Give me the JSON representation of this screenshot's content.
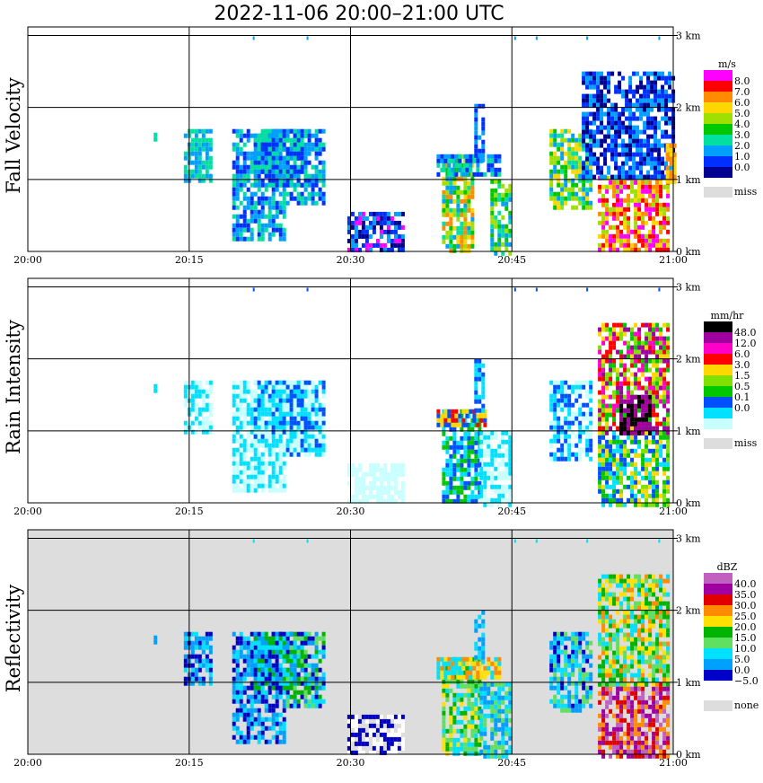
{
  "title": "2022-11-06   20:00–21:00 UTC",
  "chart_data": [
    {
      "type": "heatmap",
      "ylabel": "Fall Velocity",
      "x_ticks": [
        "20:00",
        "20:15",
        "20:30",
        "20:45",
        "21:00"
      ],
      "y_ticks": [
        "0 km",
        "1 km",
        "2 km",
        "3 km"
      ],
      "xlim_minutes": [
        0,
        60
      ],
      "ylim_km": [
        0,
        3.1
      ],
      "grid": true,
      "legend": {
        "unit": "m/s",
        "levels": [
          "8.0",
          "7.0",
          "6.0",
          "5.0",
          "4.0",
          "3.0",
          "2.0",
          "1.0",
          "0.0"
        ],
        "colors": [
          "#ff00ff",
          "#ff0000",
          "#ff8c00",
          "#ffd700",
          "#a0e000",
          "#00c800",
          "#00e0a0",
          "#00a0ff",
          "#0030ff",
          "#000090"
        ],
        "missing_label": "miss",
        "missing_color": "#dddddd"
      },
      "background": "#ffffff",
      "echoes": [
        {
          "t0": 11.7,
          "t1": 11.8,
          "z0": 1.55,
          "z1": 1.65,
          "cls": [
            6
          ]
        },
        {
          "t0": 14.5,
          "t1": 17,
          "z0": 1.0,
          "z1": 1.7,
          "cls": [
            6,
            7
          ]
        },
        {
          "t0": 19,
          "t1": 24,
          "z0": 0.2,
          "z1": 1.7,
          "cls": [
            6,
            7,
            8
          ]
        },
        {
          "t0": 21,
          "t1": 26,
          "z0": 0.9,
          "z1": 1.7,
          "cls": [
            6,
            7,
            8
          ]
        },
        {
          "t0": 24,
          "t1": 27.5,
          "z0": 0.7,
          "z1": 1.7,
          "cls": [
            6,
            7,
            8
          ]
        },
        {
          "t0": 29.7,
          "t1": 35,
          "z0": 0,
          "z1": 0.55,
          "cls": [
            7,
            8,
            9,
            0
          ]
        },
        {
          "t0": 38.5,
          "t1": 41.5,
          "z0": 0,
          "z1": 1.35,
          "cls": [
            2,
            3,
            4,
            5,
            6,
            7
          ]
        },
        {
          "t0": 38,
          "t1": 44,
          "z0": 1.1,
          "z1": 1.35,
          "cls": [
            6,
            7,
            8
          ]
        },
        {
          "t0": 41.5,
          "t1": 42.2,
          "z0": 1.3,
          "z1": 2.05,
          "cls": [
            7,
            8
          ]
        },
        {
          "t0": 43,
          "t1": 45,
          "z0": 0,
          "z1": 1.0,
          "cls": [
            4,
            5,
            6,
            7
          ]
        },
        {
          "t0": 48.5,
          "t1": 52.5,
          "z0": 0.6,
          "z1": 1.7,
          "cls": [
            3,
            4,
            5,
            6,
            7
          ]
        },
        {
          "t0": 53,
          "t1": 59.5,
          "z0": 0,
          "z1": 1.05,
          "cls": [
            0,
            1,
            2,
            3,
            4
          ]
        },
        {
          "t0": 51.5,
          "t1": 60,
          "z0": 1.05,
          "z1": 2.5,
          "cls": [
            7,
            8,
            9
          ]
        },
        {
          "t0": 59.3,
          "t1": 60,
          "z0": 1.0,
          "z1": 1.5,
          "cls": [
            2,
            3
          ]
        }
      ],
      "top_specks": [
        21,
        26,
        45.3,
        47.3,
        52,
        58.7
      ]
    },
    {
      "type": "heatmap",
      "ylabel": "Rain Intensity",
      "x_ticks": [
        "20:00",
        "20:15",
        "20:30",
        "20:45",
        "21:00"
      ],
      "y_ticks": [
        "0 km",
        "1 km",
        "2 km",
        "3 km"
      ],
      "xlim_minutes": [
        0,
        60
      ],
      "ylim_km": [
        0,
        3.1
      ],
      "grid": true,
      "legend": {
        "unit": "mm/hr",
        "levels": [
          "48.0",
          "12.0",
          "6.0",
          "3.0",
          "1.5",
          "0.5",
          "0.1",
          "0.0"
        ],
        "colors": [
          "#000000",
          "#a000a0",
          "#ff00c8",
          "#ff0000",
          "#ffd700",
          "#80e000",
          "#00c800",
          "#0050ff",
          "#00e0ff",
          "#c8ffff"
        ],
        "missing_label": "miss",
        "missing_color": "#dddddd"
      },
      "background": "#ffffff",
      "echoes": [
        {
          "t0": 11.7,
          "t1": 11.8,
          "z0": 1.55,
          "z1": 1.65,
          "cls": [
            8
          ]
        },
        {
          "t0": 14.5,
          "t1": 17,
          "z0": 1.0,
          "z1": 1.7,
          "cls": [
            8,
            9
          ]
        },
        {
          "t0": 19,
          "t1": 24,
          "z0": 0.2,
          "z1": 1.7,
          "cls": [
            8,
            9
          ]
        },
        {
          "t0": 21,
          "t1": 26,
          "z0": 0.9,
          "z1": 1.7,
          "cls": [
            8,
            9,
            7
          ]
        },
        {
          "t0": 24,
          "t1": 27.5,
          "z0": 0.7,
          "z1": 1.7,
          "cls": [
            8,
            9,
            7
          ]
        },
        {
          "t0": 29.7,
          "t1": 35,
          "z0": 0,
          "z1": 0.55,
          "cls": [
            9
          ]
        },
        {
          "t0": 38.5,
          "t1": 42,
          "z0": 0,
          "z1": 1.3,
          "cls": [
            7,
            8,
            6
          ]
        },
        {
          "t0": 38,
          "t1": 42.5,
          "z0": 1.1,
          "z1": 1.3,
          "cls": [
            3,
            4,
            7
          ]
        },
        {
          "t0": 41.5,
          "t1": 42.2,
          "z0": 1.3,
          "z1": 2.0,
          "cls": [
            7,
            8
          ]
        },
        {
          "t0": 42,
          "t1": 45,
          "z0": 0,
          "z1": 1.0,
          "cls": [
            8,
            9
          ]
        },
        {
          "t0": 48.5,
          "t1": 52.5,
          "z0": 0.6,
          "z1": 1.7,
          "cls": [
            8,
            9,
            7
          ]
        },
        {
          "t0": 53,
          "t1": 59.5,
          "z0": 0,
          "z1": 1.0,
          "cls": [
            4,
            5,
            6,
            7,
            8
          ]
        },
        {
          "t0": 53,
          "t1": 59.5,
          "z0": 1.0,
          "z1": 2.5,
          "cls": [
            1,
            2,
            3,
            4,
            5,
            6
          ]
        },
        {
          "t0": 55,
          "t1": 58,
          "z0": 1.0,
          "z1": 1.5,
          "cls": [
            0,
            1
          ]
        }
      ],
      "top_specks": [
        21,
        26,
        45.3,
        47.3,
        52,
        58.7
      ]
    },
    {
      "type": "heatmap",
      "ylabel": "Reflectivity",
      "x_ticks": [
        "20:00",
        "20:15",
        "20:30",
        "20:45",
        "21:00"
      ],
      "y_ticks": [
        "0 km",
        "1 km",
        "2 km",
        "3 km"
      ],
      "xlim_minutes": [
        0,
        60
      ],
      "ylim_km": [
        0,
        3.1
      ],
      "grid": true,
      "legend": {
        "unit": "dBZ",
        "levels": [
          "40.0",
          "35.0",
          "30.0",
          "25.0",
          "20.0",
          "15.0",
          "10.0",
          "5.0",
          "0.0",
          "−5.0"
        ],
        "colors": [
          "#c060c0",
          "#a000a0",
          "#e00000",
          "#ff8c00",
          "#ffe000",
          "#00b400",
          "#60e060",
          "#00e0ff",
          "#00a0ff",
          "#0000c8",
          "#ffffff"
        ],
        "missing_label": "none",
        "missing_color": "#dddddd"
      },
      "background": "#dddddd",
      "echoes": [
        {
          "t0": 11.7,
          "t1": 11.8,
          "z0": 1.55,
          "z1": 1.65,
          "cls": [
            8
          ]
        },
        {
          "t0": 14.5,
          "t1": 17,
          "z0": 1.0,
          "z1": 1.7,
          "cls": [
            7,
            8,
            9
          ]
        },
        {
          "t0": 19,
          "t1": 24,
          "z0": 0.2,
          "z1": 1.7,
          "cls": [
            7,
            8,
            9
          ]
        },
        {
          "t0": 21,
          "t1": 26,
          "z0": 0.9,
          "z1": 1.7,
          "cls": [
            5,
            7,
            8,
            9
          ]
        },
        {
          "t0": 24,
          "t1": 27.5,
          "z0": 0.7,
          "z1": 1.7,
          "cls": [
            5,
            6,
            7,
            8,
            9
          ]
        },
        {
          "t0": 29.7,
          "t1": 35,
          "z0": 0,
          "z1": 0.55,
          "cls": [
            9,
            10
          ]
        },
        {
          "t0": 38.5,
          "t1": 42,
          "z0": 0,
          "z1": 1.35,
          "cls": [
            4,
            5,
            6,
            7
          ]
        },
        {
          "t0": 38,
          "t1": 44,
          "z0": 1.1,
          "z1": 1.35,
          "cls": [
            3,
            4,
            7
          ]
        },
        {
          "t0": 41.5,
          "t1": 42.2,
          "z0": 1.3,
          "z1": 2.0,
          "cls": [
            7,
            8
          ]
        },
        {
          "t0": 42,
          "t1": 45,
          "z0": 0,
          "z1": 1.0,
          "cls": [
            6,
            7,
            8
          ]
        },
        {
          "t0": 48.5,
          "t1": 52.5,
          "z0": 0.6,
          "z1": 1.7,
          "cls": [
            6,
            7,
            8,
            9
          ]
        },
        {
          "t0": 53,
          "t1": 59.5,
          "z0": 0,
          "z1": 1.0,
          "cls": [
            0,
            1,
            2,
            3
          ]
        },
        {
          "t0": 53,
          "t1": 59.5,
          "z0": 1.0,
          "z1": 2.5,
          "cls": [
            3,
            4,
            5,
            6,
            7
          ]
        }
      ],
      "top_specks": [
        21,
        26,
        45.3,
        47.3,
        52,
        58.7
      ]
    }
  ]
}
